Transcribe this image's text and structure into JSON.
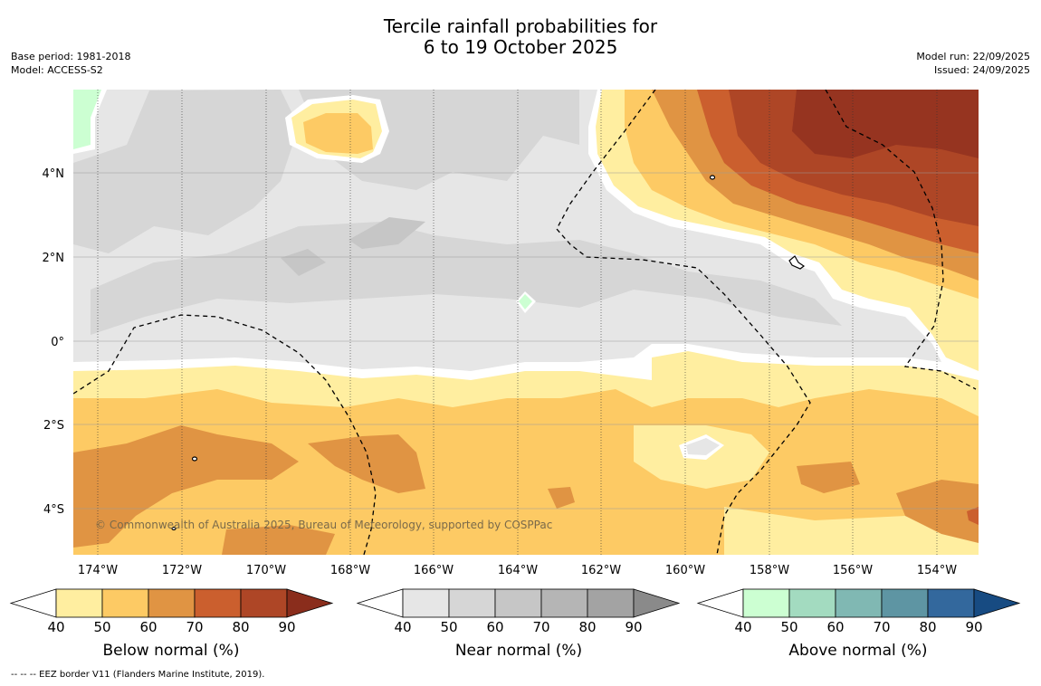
{
  "title": {
    "line1": "Tercile rainfall probabilities for",
    "line2": "6 to 19 October 2025"
  },
  "meta": {
    "base_period": "Base period: 1981-2018",
    "model": "Model: ACCESS-S2",
    "model_run": "Model run: 22/09/2025",
    "issued": "Issued: 24/09/2025"
  },
  "map": {
    "longitude_labels": [
      "174°W",
      "172°W",
      "170°W",
      "168°W",
      "166°W",
      "164°W",
      "162°W",
      "160°W",
      "158°W",
      "156°W",
      "154°W"
    ],
    "latitude_labels": [
      "4°N",
      "2°N",
      "0°",
      "2°S",
      "4°S"
    ],
    "copyright": "© Commonwealth of Australia 2025, Bureau of Meteorology, supported by COSPPac"
  },
  "colorbars": [
    {
      "label": "Below normal (%)",
      "ticks": [
        "40",
        "50",
        "60",
        "70",
        "80",
        "90"
      ],
      "colors": [
        "#ffeea0",
        "#fdca64",
        "#e09443",
        "#cb5f2e",
        "#ae4626",
        "#8a2d1c"
      ]
    },
    {
      "label": "Near normal (%)",
      "ticks": [
        "40",
        "50",
        "60",
        "70",
        "80",
        "90"
      ],
      "colors": [
        "#e6e6e6",
        "#d6d6d6",
        "#c6c6c6",
        "#b5b5b5",
        "#a3a3a3",
        "#8a8a8a"
      ]
    },
    {
      "label": "Above normal (%)",
      "ticks": [
        "40",
        "50",
        "60",
        "70",
        "80",
        "90"
      ],
      "colors": [
        "#ccffd2",
        "#a3dbc0",
        "#80b8b3",
        "#5e95a3",
        "#33689d",
        "#174b82"
      ]
    }
  ],
  "footnote": "-- -- -- EEZ border V11 (Flanders Marine Institute, 2019)."
}
